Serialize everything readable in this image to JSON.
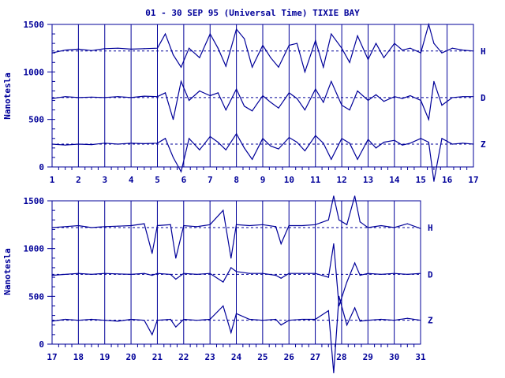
{
  "chart_data": {
    "type": "line",
    "title": "01 - 30 SEP 95 (Universal Time) TIXIE BAY",
    "ylabel": "Nanotesla",
    "colors": {
      "trace": "#000099",
      "baseline": "#000099",
      "text": "#000099"
    },
    "panels": [
      {
        "x_ticks": [
          "1",
          "2",
          "3",
          "4",
          "5",
          "6",
          "7",
          "8",
          "9",
          "10",
          "11",
          "12",
          "13",
          "14",
          "15",
          "16",
          "17"
        ],
        "xlim": [
          1,
          17
        ],
        "ylim": [
          0,
          1500
        ],
        "y_ticks": [
          "0",
          "500",
          "1000",
          "1500"
        ],
        "grid": "vertical day lines",
        "series": [
          {
            "name": "H",
            "baseline": 1220,
            "x": [
              1,
              1.5,
              2,
              2.5,
              3,
              3.5,
              4,
              4.5,
              5,
              5.3,
              5.6,
              5.9,
              6.2,
              6.6,
              7,
              7.3,
              7.6,
              8,
              8.3,
              8.6,
              9,
              9.3,
              9.6,
              10,
              10.3,
              10.6,
              11,
              11.3,
              11.6,
              12,
              12.3,
              12.6,
              13,
              13.3,
              13.6,
              14,
              14.3,
              14.6,
              15,
              15.3,
              15.5,
              15.8,
              16.2,
              16.6,
              17
            ],
            "values": [
              1200,
              1230,
              1240,
              1225,
              1245,
              1250,
              1240,
              1245,
              1250,
              1400,
              1180,
              1050,
              1250,
              1150,
              1400,
              1250,
              1060,
              1450,
              1350,
              1050,
              1280,
              1150,
              1050,
              1280,
              1300,
              1000,
              1330,
              1050,
              1400,
              1250,
              1100,
              1380,
              1130,
              1300,
              1150,
              1300,
              1230,
              1250,
              1200,
              1500,
              1300,
              1200,
              1250,
              1230,
              1220
            ]
          },
          {
            "name": "D",
            "baseline": 730,
            "x": [
              1,
              1.5,
              2,
              2.5,
              3,
              3.5,
              4,
              4.5,
              5,
              5.3,
              5.6,
              5.9,
              6.2,
              6.6,
              7,
              7.3,
              7.6,
              8,
              8.3,
              8.6,
              9,
              9.3,
              9.6,
              10,
              10.3,
              10.6,
              11,
              11.3,
              11.6,
              12,
              12.3,
              12.6,
              13,
              13.3,
              13.6,
              14,
              14.3,
              14.6,
              15,
              15.3,
              15.5,
              15.8,
              16.2,
              16.6,
              17
            ],
            "values": [
              720,
              740,
              730,
              735,
              730,
              740,
              730,
              745,
              740,
              780,
              500,
              900,
              700,
              800,
              750,
              780,
              600,
              820,
              640,
              590,
              750,
              680,
              620,
              780,
              720,
              600,
              820,
              680,
              900,
              650,
              600,
              800,
              700,
              760,
              690,
              740,
              720,
              750,
              700,
              500,
              900,
              650,
              730,
              740,
              740
            ]
          },
          {
            "name": "Z",
            "baseline": 240,
            "x": [
              1,
              1.5,
              2,
              2.5,
              3,
              3.5,
              4,
              4.5,
              5,
              5.3,
              5.6,
              5.9,
              6.2,
              6.6,
              7,
              7.3,
              7.6,
              8,
              8.3,
              8.6,
              9,
              9.3,
              9.6,
              10,
              10.3,
              10.6,
              11,
              11.3,
              11.6,
              12,
              12.3,
              12.6,
              13,
              13.3,
              13.6,
              14,
              14.3,
              14.6,
              15,
              15.3,
              15.5,
              15.8,
              16.2,
              16.6,
              17
            ],
            "values": [
              240,
              230,
              240,
              235,
              250,
              240,
              250,
              245,
              250,
              300,
              100,
              -50,
              300,
              180,
              320,
              260,
              180,
              350,
              200,
              80,
              300,
              220,
              190,
              310,
              260,
              170,
              330,
              250,
              80,
              300,
              250,
              80,
              290,
              200,
              260,
              280,
              230,
              250,
              300,
              260,
              -150,
              300,
              240,
              250,
              240
            ]
          }
        ]
      },
      {
        "x_ticks": [
          "17",
          "18",
          "19",
          "20",
          "21",
          "22",
          "23",
          "24",
          "25",
          "26",
          "27",
          "28",
          "29",
          "30",
          "31"
        ],
        "xlim": [
          17,
          31
        ],
        "ylim": [
          0,
          1500
        ],
        "y_ticks": [
          "0",
          "500",
          "1000",
          "1500"
        ],
        "grid": "vertical day lines",
        "series": [
          {
            "name": "H",
            "baseline": 1220,
            "x": [
              17,
              17.5,
              18,
              18.5,
              19,
              19.5,
              20,
              20.5,
              20.8,
              21,
              21.5,
              21.7,
              22,
              22.5,
              23,
              23.5,
              23.8,
              24,
              24.5,
              25,
              25.5,
              25.7,
              26,
              26.5,
              27,
              27.5,
              27.7,
              27.9,
              28.2,
              28.5,
              28.7,
              29,
              29.5,
              30,
              30.5,
              31
            ],
            "values": [
              1220,
              1230,
              1240,
              1220,
              1230,
              1235,
              1240,
              1260,
              950,
              1240,
              1250,
              900,
              1240,
              1230,
              1250,
              1400,
              900,
              1250,
              1240,
              1250,
              1230,
              1050,
              1240,
              1240,
              1250,
              1300,
              1550,
              1300,
              1250,
              1550,
              1280,
              1220,
              1240,
              1220,
              1260,
              1210
            ]
          },
          {
            "name": "D",
            "baseline": 730,
            "x": [
              17,
              17.5,
              18,
              18.5,
              19,
              19.5,
              20,
              20.5,
              20.8,
              21,
              21.5,
              21.7,
              22,
              22.5,
              23,
              23.5,
              23.8,
              24,
              24.5,
              25,
              25.5,
              25.7,
              26,
              26.5,
              27,
              27.5,
              27.7,
              27.9,
              28.2,
              28.5,
              28.7,
              29,
              29.5,
              30,
              30.5,
              31
            ],
            "values": [
              720,
              730,
              740,
              730,
              740,
              735,
              730,
              740,
              720,
              740,
              730,
              680,
              740,
              730,
              740,
              650,
              800,
              760,
              740,
              740,
              720,
              690,
              740,
              740,
              740,
              700,
              1050,
              400,
              650,
              850,
              720,
              740,
              730,
              740,
              730,
              740
            ]
          },
          {
            "name": "Z",
            "baseline": 250,
            "x": [
              17,
              17.5,
              18,
              18.5,
              19,
              19.5,
              20,
              20.5,
              20.8,
              21,
              21.5,
              21.7,
              22,
              22.5,
              23,
              23.5,
              23.8,
              24,
              24.5,
              25,
              25.5,
              25.7,
              26,
              26.5,
              27,
              27.5,
              27.7,
              27.9,
              28.2,
              28.5,
              28.7,
              29,
              29.5,
              30,
              30.5,
              31
            ],
            "values": [
              240,
              260,
              250,
              260,
              250,
              240,
              260,
              250,
              100,
              250,
              260,
              180,
              260,
              250,
              260,
              400,
              120,
              320,
              260,
              250,
              260,
              200,
              250,
              260,
              260,
              350,
              -300,
              500,
              200,
              380,
              240,
              250,
              260,
              250,
              270,
              250
            ]
          }
        ]
      }
    ]
  }
}
